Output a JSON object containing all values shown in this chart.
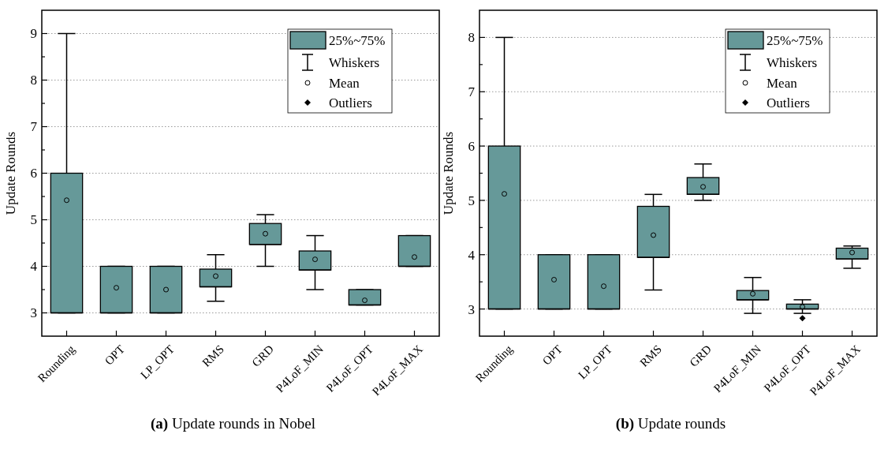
{
  "chart_data": [
    {
      "type": "box",
      "title": "(a) Update rounds in Nobel",
      "ylabel": "Update Rounds",
      "categories": [
        "Rounding",
        "OPT",
        "LP_OPT",
        "RMS",
        "GRD",
        "P4LoF_MIN",
        "P4LoF_OPT",
        "P4LoF_MAX"
      ],
      "series": [
        {
          "name": "25%~75%",
          "color": "#669999",
          "boxes": [
            {
              "low": 3,
              "q1": 3,
              "median": 3,
              "q3": 6,
              "high": 9,
              "mean": 5.42
            },
            {
              "low": 3,
              "q1": 3,
              "median": 3,
              "q3": 4,
              "high": 4,
              "mean": 3.54
            },
            {
              "low": 3,
              "q1": 3,
              "median": 3,
              "q3": 4,
              "high": 4,
              "mean": 3.5
            },
            {
              "low": 3.25,
              "q1": 3.56,
              "median": 3.56,
              "q3": 3.94,
              "high": 4.25,
              "mean": 3.79
            },
            {
              "low": 4,
              "q1": 4.47,
              "median": 4.47,
              "q3": 4.92,
              "high": 5.11,
              "mean": 4.7
            },
            {
              "low": 3.5,
              "q1": 3.92,
              "median": 3.92,
              "q3": 4.33,
              "high": 4.66,
              "mean": 4.15
            },
            {
              "low": 3.17,
              "q1": 3.17,
              "median": 3.17,
              "q3": 3.5,
              "high": 3.5,
              "mean": 3.27
            },
            {
              "low": 4,
              "q1": 4,
              "median": 4,
              "q3": 4.66,
              "high": 4.66,
              "mean": 4.2
            }
          ]
        }
      ],
      "ylim": [
        2.5,
        9.5
      ],
      "yticks": [
        3,
        {
          "value": 3.5,
          "label": null
        },
        4,
        {
          "value": 4.5,
          "label": null
        },
        5,
        {
          "value": 5.5,
          "label": null
        },
        6,
        {
          "value": 6.5,
          "label": null
        },
        7,
        {
          "value": 7.5,
          "label": null
        },
        8,
        {
          "value": 8.5,
          "label": null
        },
        9
      ],
      "grid": "y",
      "legend": "top right",
      "annotations": [
        "Whiskers",
        "Mean",
        "Outliers"
      ]
    },
    {
      "type": "box",
      "title": "(b) Update rounds",
      "ylabel": "Update Rounds",
      "categories": [
        "Rounding",
        "OPT",
        "LP_OPT",
        "RMS",
        "GRD",
        "P4LoF_MIN",
        "P4LoF_OPT",
        "P4LoF_MAX"
      ],
      "series": [
        {
          "name": "25%~75%",
          "color": "#669999",
          "boxes": [
            {
              "low": 3,
              "q1": 3,
              "median": 3,
              "q3": 6,
              "high": 8,
              "mean": 5.12
            },
            {
              "low": 3,
              "q1": 3,
              "median": 3,
              "q3": 4,
              "high": 4,
              "mean": 3.54
            },
            {
              "low": 3,
              "q1": 3,
              "median": 3,
              "q3": 4,
              "high": 4,
              "mean": 3.42
            },
            {
              "low": 3.35,
              "q1": 3.95,
              "median": 3.95,
              "q3": 4.89,
              "high": 5.11,
              "mean": 4.36
            },
            {
              "low": 5,
              "q1": 5.11,
              "median": 5.11,
              "q3": 5.42,
              "high": 5.67,
              "mean": 5.25
            },
            {
              "low": 2.92,
              "q1": 3.17,
              "median": 3.17,
              "q3": 3.34,
              "high": 3.58,
              "mean": 3.28
            },
            {
              "low": 2.92,
              "q1": 3,
              "median": 3,
              "q3": 3.09,
              "high": 3.17,
              "mean": 3.04,
              "outliers": [
                2.83
              ]
            },
            {
              "low": 3.75,
              "q1": 3.92,
              "median": 3.92,
              "q3": 4.12,
              "high": 4.16,
              "mean": 4.04
            }
          ]
        }
      ],
      "ylim": [
        2.5,
        8.5
      ],
      "yticks": [
        3,
        {
          "value": 3.5,
          "label": null
        },
        4,
        {
          "value": 4.5,
          "label": null
        },
        5,
        {
          "value": 5.5,
          "label": null
        },
        6,
        {
          "value": 6.5,
          "label": null
        },
        7,
        {
          "value": 7.5,
          "label": null
        },
        8
      ],
      "grid": "y",
      "legend": "top right",
      "annotations": [
        "Whiskers",
        "Mean",
        "Outliers"
      ]
    }
  ]
}
